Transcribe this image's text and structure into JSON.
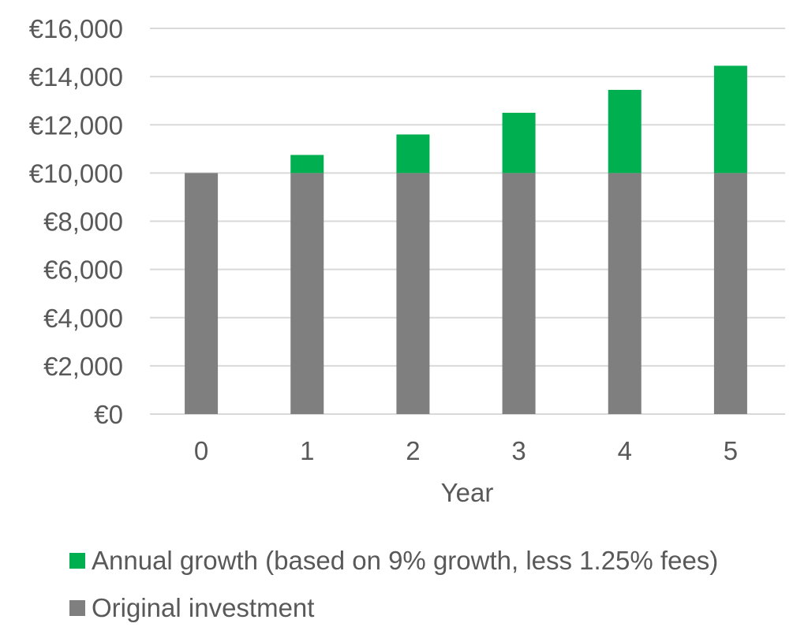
{
  "chart_data": {
    "type": "bar",
    "stacked": true,
    "categories": [
      "0",
      "1",
      "2",
      "3",
      "4",
      "5"
    ],
    "series": [
      {
        "name": "Original investment",
        "color": "#7f7f7f",
        "values": [
          10000,
          10000,
          10000,
          10000,
          10000,
          10000
        ]
      },
      {
        "name": "Annual growth (based on 9% growth, less 1.25% fees)",
        "color": "#00b050",
        "values": [
          0,
          750,
          1600,
          2500,
          3450,
          4450
        ]
      }
    ],
    "title": "",
    "xlabel": "Year",
    "ylabel": "",
    "ylim": [
      0,
      16000
    ],
    "yticks": [
      0,
      2000,
      4000,
      6000,
      8000,
      10000,
      12000,
      14000,
      16000
    ],
    "ytick_labels": [
      "€0",
      "€2,000",
      "€4,000",
      "€6,000",
      "€8,000",
      "€10,000",
      "€12,000",
      "€14,000",
      "€16,000"
    ],
    "grid": true,
    "legend_position": "bottom-left",
    "gridline_color": "#d9d9d9"
  },
  "legend": {
    "growth_label": "Annual growth (based on 9% growth, less 1.25% fees)",
    "original_label": "Original investment"
  }
}
